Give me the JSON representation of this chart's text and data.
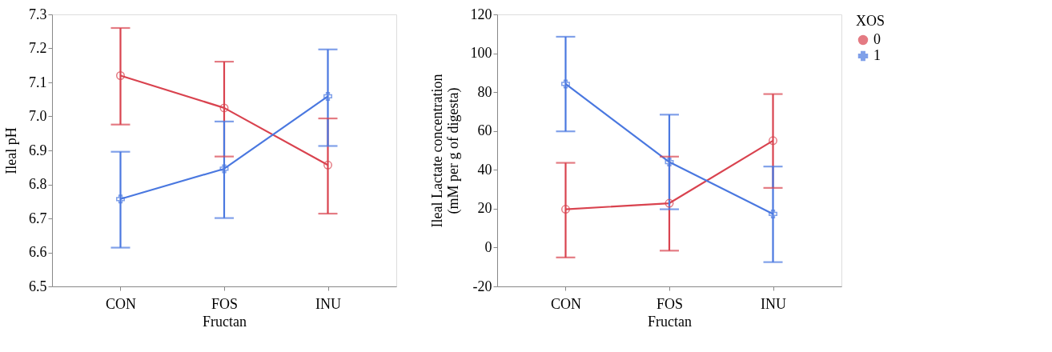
{
  "chart_data": [
    {
      "type": "line",
      "xlabel": "Fructan",
      "ylabel": "Ileal pH",
      "categories": [
        "CON",
        "FOS",
        "INU"
      ],
      "series": [
        {
          "color": "#d9434f",
          "marker": "circle",
          "values": [
            7.12,
            7.025,
            6.857
          ],
          "errors": [
            [
              6.976,
              7.26
            ],
            [
              6.882,
              7.161
            ],
            [
              6.714,
              6.994
            ]
          ]
        },
        {
          "color": "#4a78e0",
          "marker": "cross",
          "values": [
            6.757,
            6.846,
            7.059
          ],
          "errors": [
            [
              6.614,
              6.896
            ],
            [
              6.701,
              6.985
            ],
            [
              6.913,
              7.197
            ]
          ]
        }
      ],
      "ylim": [
        6.5,
        7.3
      ],
      "yticks": [
        6.5,
        6.6,
        6.7,
        6.8,
        6.9,
        {
          "value": 7,
          "label": "7.0"
        },
        7.1,
        7.2,
        7.3
      ],
      "grid": false
    },
    {
      "type": "line",
      "xlabel": "Fructan",
      "ylabel": "Ileal Lactate concentration\n(mM per g of digesta)",
      "legend_title": "XOS",
      "categories": [
        "CON",
        "FOS",
        "INU"
      ],
      "series": [
        {
          "name": "0",
          "color": "#d9434f",
          "marker": "circle",
          "values": [
            19.7,
            22.8,
            55
          ],
          "errors": [
            [
              -5.1,
              43.6
            ],
            [
              -1.6,
              46.8
            ],
            [
              30.7,
              79
            ]
          ]
        },
        {
          "name": "1",
          "color": "#4a78e0",
          "marker": "cross",
          "values": [
            84.2,
            44,
            17.3
          ],
          "errors": [
            [
              59.8,
              108.5
            ],
            [
              19.7,
              68.4
            ],
            [
              -7.5,
              41.7
            ]
          ]
        }
      ],
      "ylim": [
        -20,
        120
      ],
      "yticks": [
        -20,
        0,
        20,
        40,
        60,
        80,
        100,
        120
      ],
      "grid": false,
      "legend": "right"
    }
  ]
}
